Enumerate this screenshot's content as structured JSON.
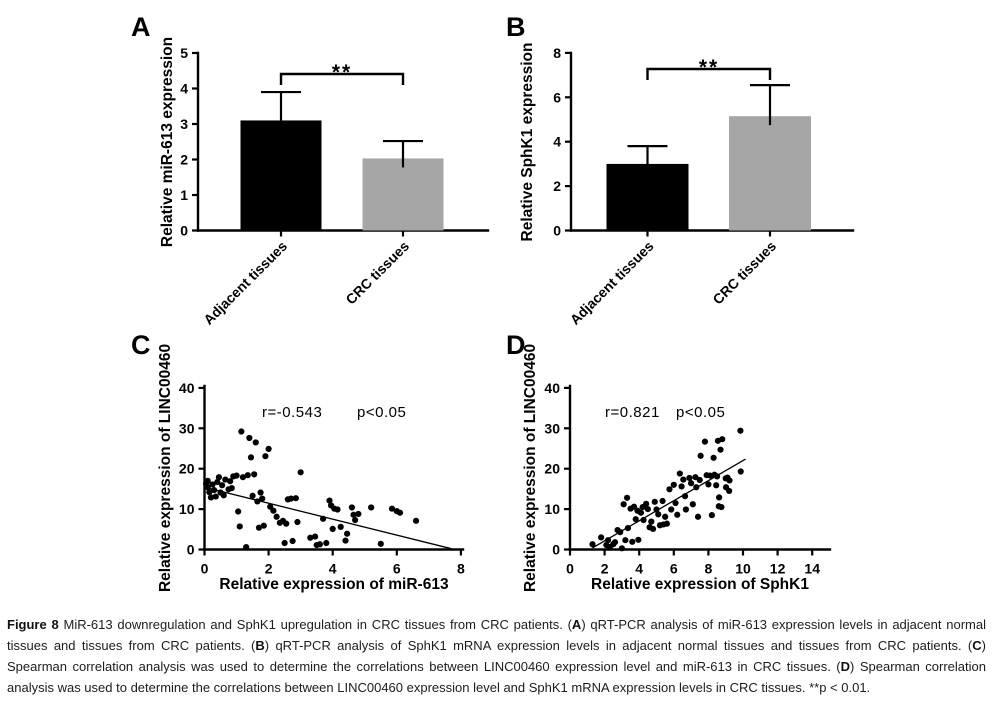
{
  "figure": {
    "panel_letters": [
      "A",
      "B",
      "C",
      "D"
    ],
    "caption_segments": [
      {
        "text": "Figure 8 ",
        "bold": true
      },
      {
        "text": "MiR-613 downregulation and SphK1 upregulation in CRC tissues from CRC patients. (",
        "bold": false
      },
      {
        "text": "A",
        "bold": true
      },
      {
        "text": ") qRT-PCR analysis of miR-613 expression levels in adjacent normal tissues and tissues from CRC patients. (",
        "bold": false
      },
      {
        "text": "B",
        "bold": true
      },
      {
        "text": ") qRT-PCR analysis of SphK1 mRNA expression levels in adjacent normal tissues and tissues from CRC patients. (",
        "bold": false
      },
      {
        "text": "C",
        "bold": true
      },
      {
        "text": ") Spearman correlation analysis was used to determine the correlations between LINC00460 expression level and miR-613 in CRC tissues. (",
        "bold": false
      },
      {
        "text": "D",
        "bold": true
      },
      {
        "text": ") Spearman correlation analysis was used to determine the correlations between LINC00460 expression level and SphK1 mRNA expression levels in CRC tissues. **p < 0.01.",
        "bold": false
      }
    ]
  },
  "chart_data": [
    {
      "type": "bar",
      "panel": "A",
      "categories": [
        "Adjacent tissues",
        "CRC tissues"
      ],
      "values": [
        3.1,
        2.03
      ],
      "error_top": [
        3.9,
        2.52
      ],
      "bar_colors": [
        "#000000",
        "#a6a6a6"
      ],
      "ylabel": "Relative miR-613 expression",
      "ylim": [
        0,
        5
      ],
      "yticks": [
        0,
        1,
        2,
        3,
        4,
        5
      ],
      "significance": "**",
      "grid": false,
      "legend": "none"
    },
    {
      "type": "bar",
      "panel": "B",
      "categories": [
        "Adjacent tissues",
        "CRC tissues"
      ],
      "values": [
        3.0,
        5.15
      ],
      "error_top": [
        3.8,
        6.55
      ],
      "bar_colors": [
        "#000000",
        "#a6a6a6"
      ],
      "ylabel": "Relative SphK1 expression",
      "ylim": [
        0,
        8
      ],
      "yticks": [
        0,
        2,
        4,
        6,
        8
      ],
      "significance": "**",
      "grid": false,
      "legend": "none"
    },
    {
      "type": "scatter",
      "panel": "C",
      "xlabel": "Relative expression of miR-613",
      "ylabel": "Relative expression of LINC00460",
      "xlim": [
        0,
        8
      ],
      "ylim": [
        0,
        40
      ],
      "xticks": [
        0,
        2,
        4,
        6,
        8
      ],
      "yticks": [
        0,
        10,
        20,
        30,
        40
      ],
      "correlation": "r=-0.543",
      "p_value": "p<0.05",
      "trendline": [
        [
          0,
          15.4
        ],
        [
          7.7,
          0.2
        ]
      ],
      "point_color": "#000000",
      "points": [
        [
          0.05,
          16.3
        ],
        [
          0.1,
          15.4
        ],
        [
          0.1,
          17.0
        ],
        [
          0.15,
          14.2
        ],
        [
          0.2,
          12.9
        ],
        [
          0.25,
          16.1
        ],
        [
          0.3,
          14.7
        ],
        [
          0.35,
          13.1
        ],
        [
          0.4,
          16.7
        ],
        [
          0.45,
          17.9
        ],
        [
          0.5,
          14.1
        ],
        [
          0.55,
          15.9
        ],
        [
          0.6,
          13.4
        ],
        [
          0.65,
          17.3
        ],
        [
          0.75,
          14.9
        ],
        [
          0.8,
          16.9
        ],
        [
          0.85,
          15.2
        ],
        [
          0.9,
          18.1
        ],
        [
          1.0,
          18.3
        ],
        [
          1.05,
          9.4
        ],
        [
          1.1,
          5.7
        ],
        [
          1.15,
          29.2
        ],
        [
          1.2,
          17.9
        ],
        [
          1.3,
          0.6
        ],
        [
          1.35,
          18.4
        ],
        [
          1.4,
          27.6
        ],
        [
          1.45,
          22.8
        ],
        [
          1.5,
          13.3
        ],
        [
          1.55,
          18.6
        ],
        [
          1.6,
          26.5
        ],
        [
          1.65,
          11.9
        ],
        [
          1.7,
          5.4
        ],
        [
          1.75,
          14.1
        ],
        [
          1.8,
          12.6
        ],
        [
          1.85,
          5.9
        ],
        [
          1.9,
          23.1
        ],
        [
          2.0,
          24.9
        ],
        [
          2.05,
          10.6
        ],
        [
          2.15,
          9.6
        ],
        [
          2.25,
          8.1
        ],
        [
          2.35,
          6.6
        ],
        [
          2.45,
          7.1
        ],
        [
          2.5,
          1.6
        ],
        [
          2.55,
          6.4
        ],
        [
          2.6,
          12.4
        ],
        [
          2.7,
          12.6
        ],
        [
          2.75,
          2.1
        ],
        [
          2.85,
          12.7
        ],
        [
          2.9,
          6.8
        ],
        [
          3.0,
          19.1
        ],
        [
          3.3,
          2.9
        ],
        [
          3.45,
          3.2
        ],
        [
          3.5,
          1.1
        ],
        [
          3.6,
          1.3
        ],
        [
          3.7,
          7.6
        ],
        [
          3.8,
          1.6
        ],
        [
          3.9,
          12.1
        ],
        [
          3.95,
          10.9
        ],
        [
          4.0,
          5.1
        ],
        [
          4.05,
          10.1
        ],
        [
          4.15,
          9.9
        ],
        [
          4.25,
          5.6
        ],
        [
          4.4,
          2.2
        ],
        [
          4.45,
          3.9
        ],
        [
          4.6,
          10.4
        ],
        [
          4.65,
          8.6
        ],
        [
          4.7,
          7.3
        ],
        [
          4.8,
          8.8
        ],
        [
          5.2,
          10.4
        ],
        [
          5.5,
          1.4
        ],
        [
          5.85,
          10.1
        ],
        [
          6.0,
          9.5
        ],
        [
          6.1,
          9.1
        ],
        [
          6.6,
          7.1
        ]
      ]
    },
    {
      "type": "scatter",
      "panel": "D",
      "xlabel": "Relative expression of SphK1",
      "ylabel": "Relative expression of LINC00460",
      "xlim": [
        0,
        15
      ],
      "ylim": [
        0,
        40
      ],
      "xticks": [
        0,
        2,
        4,
        6,
        8,
        10,
        12,
        14
      ],
      "yticks": [
        0,
        10,
        20,
        30,
        40
      ],
      "correlation": "r=0.821",
      "p_value": "p<0.05",
      "trendline": [
        [
          1.3,
          0.4
        ],
        [
          10.15,
          22.4
        ]
      ],
      "point_color": "#000000",
      "points": [
        [
          1.3,
          1.3
        ],
        [
          1.8,
          3.0
        ],
        [
          2.1,
          1.1
        ],
        [
          2.2,
          2.3
        ],
        [
          2.3,
          0.6
        ],
        [
          2.5,
          1.3
        ],
        [
          2.6,
          1.8
        ],
        [
          2.75,
          4.8
        ],
        [
          2.9,
          4.3
        ],
        [
          3.0,
          0.3
        ],
        [
          3.1,
          11.2
        ],
        [
          3.2,
          2.3
        ],
        [
          3.3,
          12.8
        ],
        [
          3.35,
          5.3
        ],
        [
          3.5,
          10.1
        ],
        [
          3.6,
          1.9
        ],
        [
          3.7,
          10.6
        ],
        [
          3.8,
          7.5
        ],
        [
          3.9,
          9.6
        ],
        [
          3.95,
          2.4
        ],
        [
          4.1,
          9.1
        ],
        [
          4.2,
          10.5
        ],
        [
          4.25,
          7.3
        ],
        [
          4.4,
          11.3
        ],
        [
          4.5,
          10.0
        ],
        [
          4.6,
          5.5
        ],
        [
          4.7,
          6.9
        ],
        [
          4.8,
          5.1
        ],
        [
          4.9,
          11.8
        ],
        [
          5.0,
          9.9
        ],
        [
          5.1,
          8.7
        ],
        [
          5.2,
          6.0
        ],
        [
          5.35,
          12.0
        ],
        [
          5.4,
          6.2
        ],
        [
          5.5,
          8.1
        ],
        [
          5.6,
          6.4
        ],
        [
          5.75,
          14.9
        ],
        [
          5.85,
          9.9
        ],
        [
          6.0,
          16.0
        ],
        [
          6.1,
          11.5
        ],
        [
          6.2,
          8.6
        ],
        [
          6.35,
          18.8
        ],
        [
          6.45,
          15.6
        ],
        [
          6.55,
          17.3
        ],
        [
          6.65,
          13.2
        ],
        [
          6.7,
          9.9
        ],
        [
          6.9,
          17.7
        ],
        [
          7.0,
          16.4
        ],
        [
          7.1,
          11.2
        ],
        [
          7.25,
          17.9
        ],
        [
          7.3,
          15.4
        ],
        [
          7.4,
          8.1
        ],
        [
          7.5,
          17.2
        ],
        [
          7.55,
          23.2
        ],
        [
          7.8,
          26.7
        ],
        [
          7.9,
          18.4
        ],
        [
          8.0,
          16.1
        ],
        [
          8.1,
          18.3
        ],
        [
          8.2,
          8.5
        ],
        [
          8.3,
          22.7
        ],
        [
          8.35,
          18.5
        ],
        [
          8.45,
          15.9
        ],
        [
          8.5,
          18.1
        ],
        [
          8.55,
          26.9
        ],
        [
          8.6,
          10.7
        ],
        [
          8.62,
          12.9
        ],
        [
          8.7,
          24.7
        ],
        [
          8.75,
          10.5
        ],
        [
          8.8,
          27.3
        ],
        [
          9.0,
          17.6
        ],
        [
          9.02,
          15.4
        ],
        [
          9.1,
          17.8
        ],
        [
          9.2,
          14.5
        ],
        [
          9.22,
          17.1
        ],
        [
          9.85,
          29.4
        ],
        [
          9.87,
          19.3
        ]
      ]
    }
  ]
}
